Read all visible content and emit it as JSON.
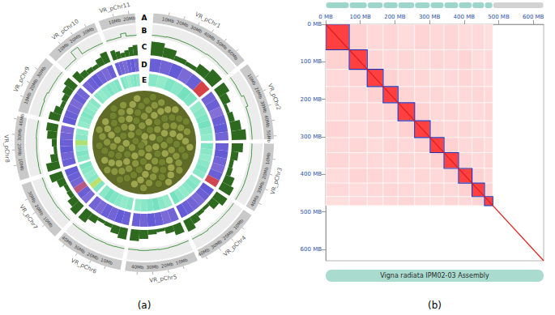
{
  "chromosomes": [
    {
      "name": "VR_pChr1",
      "size": 68
    },
    {
      "name": "VR_pChr2",
      "size": 52
    },
    {
      "name": "VR_pChr3",
      "size": 46
    },
    {
      "name": "VR_pChr4",
      "size": 43
    },
    {
      "name": "VR_pChr5",
      "size": 48
    },
    {
      "name": "VR_pChr6",
      "size": 45
    },
    {
      "name": "VR_pChr7",
      "size": 40
    },
    {
      "name": "VR_pChr8",
      "size": 42
    },
    {
      "name": "VR_pChr9",
      "size": 39
    },
    {
      "name": "VR_pChr10",
      "size": 36
    },
    {
      "name": "VR_pChr11",
      "size": 24
    }
  ],
  "chart_data": [
    {
      "type": "circos",
      "label": "(a)",
      "ticks": [
        {
          "value": 10,
          "label": "10Mb"
        },
        {
          "value": 20,
          "label": "20Mb"
        },
        {
          "value": 30,
          "label": "30Mb"
        },
        {
          "value": 40,
          "label": "40Mb"
        },
        {
          "value": 50,
          "label": "50Mb"
        },
        {
          "value": 60,
          "label": "60Mb"
        }
      ],
      "tracks": [
        {
          "label": "A",
          "type": "ideogram",
          "color": "#c9c9c9"
        },
        {
          "label": "B",
          "type": "line",
          "color": "#2e8b2e",
          "ylim": [
            0,
            100
          ],
          "values": [
            [
              18,
              22,
              20,
              19,
              24,
              21
            ],
            [
              20,
              18,
              35,
              19,
              21,
              20
            ],
            [
              19,
              21,
              18,
              20,
              22,
              19
            ],
            [
              21,
              19,
              20,
              18,
              23,
              20
            ],
            [
              18,
              20,
              22,
              19,
              21,
              18
            ],
            [
              20,
              22,
              19,
              21,
              18,
              20
            ],
            [
              19,
              18,
              21,
              20,
              22,
              19
            ],
            [
              22,
              20,
              19,
              18,
              21,
              20
            ],
            [
              20,
              21,
              28,
              19,
              20,
              22
            ],
            [
              19,
              20,
              85,
              22,
              20,
              19
            ],
            [
              21,
              19,
              20,
              45,
              20,
              18
            ]
          ]
        },
        {
          "label": "C",
          "type": "bar",
          "color": "#2d6a1f",
          "ylim": [
            0,
            100
          ],
          "values": [
            [
              85,
              60,
              30,
              25,
              55,
              80
            ],
            [
              75,
              50,
              20,
              35,
              65,
              90
            ],
            [
              70,
              45,
              25,
              30,
              60,
              80
            ],
            [
              80,
              55,
              20,
              25,
              50,
              75
            ],
            [
              65,
              40,
              20,
              30,
              55,
              70
            ],
            [
              70,
              50,
              25,
              20,
              45,
              75
            ],
            [
              75,
              55,
              30,
              25,
              50,
              80
            ],
            [
              80,
              45,
              20,
              30,
              60,
              70
            ],
            [
              70,
              50,
              25,
              35,
              55,
              75
            ],
            [
              65,
              40,
              30,
              25,
              50,
              70
            ],
            [
              60,
              45,
              30,
              40,
              55,
              65
            ]
          ]
        },
        {
          "label": "D",
          "type": "heatmap",
          "color_range": [
            0,
            100
          ],
          "values": [
            [
              30,
              35,
              25,
              40,
              30,
              92
            ],
            [
              35,
              30,
              45,
              30,
              25,
              35
            ],
            [
              30,
              25,
              35,
              40,
              30,
              88
            ],
            [
              25,
              30,
              40,
              35,
              30,
              25
            ],
            [
              35,
              40,
              30,
              25,
              35,
              30
            ],
            [
              30,
              25,
              35,
              30,
              40,
              35
            ],
            [
              40,
              30,
              75,
              35,
              30,
              25
            ],
            [
              30,
              35,
              25,
              30,
              35,
              40
            ],
            [
              25,
              30,
              35,
              40,
              30,
              35
            ],
            [
              35,
              30,
              25,
              35,
              40,
              30
            ],
            [
              30,
              35,
              40,
              30,
              25,
              35
            ]
          ]
        },
        {
          "label": "E",
          "type": "heatmap",
          "color_range": [
            0,
            100
          ],
          "values": [
            [
              30,
              25,
              35,
              30,
              40,
              35
            ],
            [
              25,
              30,
              35,
              40,
              30,
              25
            ],
            [
              35,
              30,
              25,
              30,
              35,
              30
            ],
            [
              30,
              35,
              30,
              25,
              30,
              40
            ],
            [
              25,
              30,
              40,
              35,
              30,
              25
            ],
            [
              30,
              25,
              30,
              35,
              40,
              30
            ],
            [
              35,
              85,
              30,
              25,
              30,
              35
            ],
            [
              30,
              35,
              25,
              80,
              30,
              25
            ],
            [
              25,
              30,
              35,
              30,
              25,
              30
            ],
            [
              30,
              25,
              30,
              35,
              30,
              35
            ],
            [
              35,
              30,
              25,
              30,
              35,
              30
            ]
          ]
        }
      ]
    },
    {
      "type": "heatmap",
      "label": "(b)",
      "title": "Vigna radiata IPM02-03 Assembly",
      "xlim": [
        0,
        630
      ],
      "ylim": [
        0,
        630
      ],
      "xticks": [
        {
          "value": 0,
          "label": "0 MB"
        },
        {
          "value": 100,
          "label": "100 MB"
        },
        {
          "value": 200,
          "label": "200 MB"
        },
        {
          "value": 300,
          "label": "300 MB"
        },
        {
          "value": 400,
          "label": "400 MB"
        },
        {
          "value": 500,
          "label": "500 MB"
        },
        {
          "value": 600,
          "label": "600 MB"
        }
      ],
      "yticks": [
        {
          "value": 0,
          "label": "0 MB"
        },
        {
          "value": 100,
          "label": "100 MB"
        },
        {
          "value": 200,
          "label": "200 MB"
        },
        {
          "value": 300,
          "label": "300 MB"
        },
        {
          "value": 400,
          "label": "400 MB"
        },
        {
          "value": 500,
          "label": "500 MB"
        },
        {
          "value": 600,
          "label": "600 MB"
        }
      ],
      "color_range": [
        0,
        100
      ],
      "cells": [
        [
          75,
          18,
          15,
          16,
          14,
          17,
          15,
          16,
          14,
          15,
          13
        ],
        [
          18,
          75,
          17,
          15,
          16,
          14,
          16,
          15,
          17,
          14,
          15
        ],
        [
          15,
          17,
          75,
          18,
          15,
          16,
          14,
          15,
          16,
          15,
          14
        ],
        [
          16,
          15,
          18,
          75,
          17,
          15,
          16,
          14,
          15,
          16,
          15
        ],
        [
          14,
          16,
          15,
          17,
          75,
          18,
          15,
          16,
          14,
          15,
          16
        ],
        [
          17,
          14,
          16,
          15,
          18,
          75,
          17,
          15,
          16,
          14,
          15
        ],
        [
          15,
          16,
          14,
          16,
          15,
          17,
          75,
          18,
          15,
          16,
          14
        ],
        [
          16,
          15,
          15,
          14,
          16,
          15,
          18,
          75,
          17,
          15,
          16
        ],
        [
          14,
          17,
          16,
          15,
          14,
          16,
          15,
          17,
          75,
          18,
          15
        ],
        [
          15,
          14,
          15,
          16,
          15,
          14,
          16,
          15,
          18,
          75,
          17
        ],
        [
          13,
          15,
          14,
          15,
          16,
          15,
          14,
          16,
          15,
          17,
          75
        ]
      ]
    }
  ]
}
